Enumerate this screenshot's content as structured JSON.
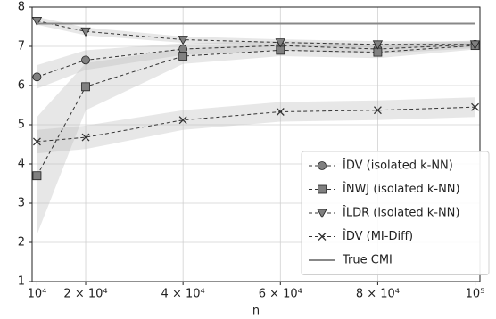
{
  "chart_data": {
    "type": "line",
    "x_label": "n",
    "x": [
      10000,
      20000,
      40000,
      60000,
      80000,
      100000
    ],
    "xlim": [
      9000,
      101000
    ],
    "ylim": [
      1,
      8
    ],
    "xticks": [
      {
        "value": 10000,
        "label": "10⁴"
      },
      {
        "value": 20000,
        "label": "2 × 10⁴"
      },
      {
        "value": 40000,
        "label": "4 × 10⁴"
      },
      {
        "value": 60000,
        "label": "6 × 10⁴"
      },
      {
        "value": 80000,
        "label": "8 × 10⁴"
      },
      {
        "value": 100000,
        "label": "10⁵"
      }
    ],
    "yticks": [
      1,
      2,
      3,
      4,
      5,
      6,
      7,
      8
    ],
    "grid": true,
    "legend": "lower right",
    "series": [
      {
        "name": "ÎDV (isolated k-NN)",
        "color": "#808080",
        "marker": "circle",
        "values": [
          6.22,
          6.65,
          6.93,
          7.02,
          6.93,
          7.05
        ],
        "spread": [
          0.3,
          0.25,
          0.15,
          0.12,
          0.12,
          0.1
        ]
      },
      {
        "name": "ÎNWJ (isolated k-NN)",
        "color": "#808080",
        "marker": "square",
        "values": [
          3.7,
          5.97,
          6.75,
          6.9,
          6.85,
          7.02
        ],
        "spread": [
          1.5,
          0.6,
          0.2,
          0.15,
          0.15,
          0.1
        ]
      },
      {
        "name": "ÎLDR (isolated k-NN)",
        "color": "#808080",
        "marker": "triangle",
        "values": [
          7.65,
          7.38,
          7.17,
          7.1,
          7.05,
          7.05
        ],
        "spread": [
          0.1,
          0.1,
          0.08,
          0.08,
          0.08,
          0.08
        ]
      },
      {
        "name": "ÎDV (MI-Diff)",
        "color": "#333333",
        "marker": "x",
        "values": [
          4.57,
          4.68,
          5.12,
          5.33,
          5.37,
          5.45
        ],
        "spread": [
          0.3,
          0.3,
          0.25,
          0.25,
          0.25,
          0.25
        ]
      },
      {
        "name": "True CMI",
        "color": "#888888",
        "marker": "none",
        "values": [
          7.58,
          7.58,
          7.58,
          7.58,
          7.58,
          7.58
        ]
      }
    ]
  }
}
